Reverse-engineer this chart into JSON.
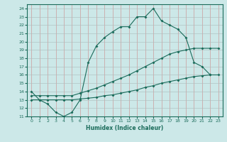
{
  "xlabel": "Humidex (Indice chaleur)",
  "bg_color": "#cce8e8",
  "grid_color": "#b0c8c8",
  "line_color": "#1a6b5a",
  "xlim": [
    -0.5,
    23.5
  ],
  "ylim": [
    11,
    24.5
  ],
  "xticks": [
    0,
    1,
    2,
    3,
    4,
    5,
    6,
    7,
    8,
    9,
    10,
    11,
    12,
    13,
    14,
    15,
    16,
    17,
    18,
    19,
    20,
    21,
    22,
    23
  ],
  "yticks": [
    11,
    12,
    13,
    14,
    15,
    16,
    17,
    18,
    19,
    20,
    21,
    22,
    23,
    24
  ],
  "line1_x": [
    0,
    1,
    2,
    3,
    4,
    5,
    6,
    7,
    8,
    9,
    10,
    11,
    12,
    13,
    14,
    15,
    16,
    17,
    18,
    19,
    20,
    21,
    22
  ],
  "line1_y": [
    14,
    13,
    12.5,
    11.5,
    11,
    11.5,
    13,
    17.5,
    19.5,
    20.5,
    21.2,
    21.8,
    21.8,
    23,
    23,
    24,
    22.5,
    22,
    21.5,
    20.5,
    17.5,
    17,
    16
  ],
  "line2_x": [
    0,
    1,
    2,
    3,
    4,
    5,
    6,
    7,
    8,
    9,
    10,
    11,
    12,
    13,
    14,
    15,
    16,
    17,
    18,
    19,
    20,
    21,
    22,
    23
  ],
  "line2_y": [
    13.5,
    13.5,
    13.5,
    13.5,
    13.5,
    13.5,
    13.8,
    14.1,
    14.4,
    14.8,
    15.2,
    15.6,
    16.0,
    16.5,
    17.0,
    17.5,
    18.0,
    18.5,
    18.8,
    19.0,
    19.2,
    19.2,
    19.2,
    19.2
  ],
  "line3_x": [
    0,
    1,
    2,
    3,
    4,
    5,
    6,
    7,
    8,
    9,
    10,
    11,
    12,
    13,
    14,
    15,
    16,
    17,
    18,
    19,
    20,
    21,
    22,
    23
  ],
  "line3_y": [
    13.0,
    13.0,
    13.0,
    13.0,
    13.0,
    13.0,
    13.1,
    13.2,
    13.3,
    13.5,
    13.6,
    13.8,
    14.0,
    14.2,
    14.5,
    14.7,
    15.0,
    15.2,
    15.4,
    15.6,
    15.8,
    15.9,
    16.0,
    16.0
  ]
}
